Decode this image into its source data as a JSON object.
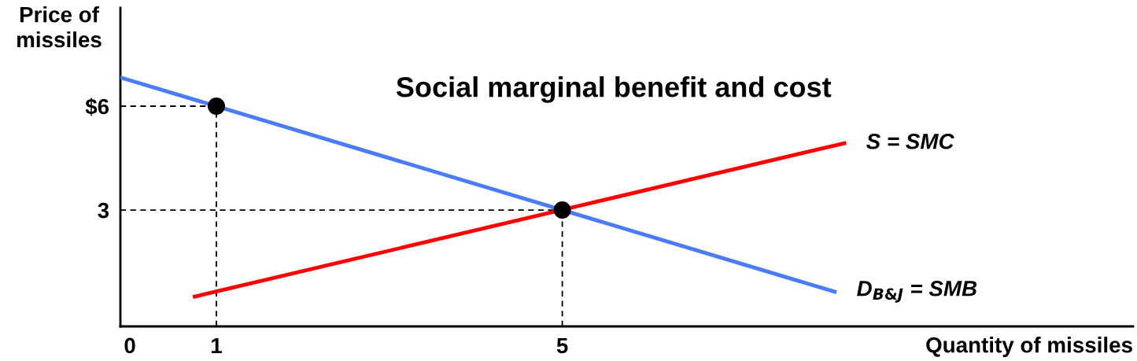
{
  "chart_data": {
    "type": "line",
    "title": "Social marginal benefit and cost",
    "xlabel": "Quantity of missiles",
    "ylabel": "Price of\nmissiles",
    "xlim": [
      -0.11,
      11.6
    ],
    "ylim": [
      -0.36,
      8.84
    ],
    "xticks": [
      0,
      1,
      5
    ],
    "yticks": [
      {
        "value": 6,
        "label": "$6"
      },
      3
    ],
    "grid": false,
    "legend": false,
    "marker": "none",
    "line_style": "solid",
    "series": [
      {
        "name": "D$_{B&J}$ = SMB",
        "color": "#4a7cf7",
        "x": [
          -0.11,
          8.15
        ],
        "values": [
          6.83,
          0.64
        ]
      },
      {
        "name": "S = SMC",
        "color": "#ff0000",
        "x": [
          0.75,
          8.26
        ],
        "values": [
          0.5,
          4.93
        ]
      },
      {
        "type": "line",
        "color": "#000000",
        "line_style": "dashed",
        "x": [
          -0.11,
          1
        ],
        "values": [
          6,
          6
        ]
      },
      {
        "type": "line",
        "color": "#000000",
        "line_style": "dashed",
        "x": [
          1,
          1
        ],
        "values": [
          -0.36,
          6
        ]
      },
      {
        "type": "line",
        "color": "#000000",
        "line_style": "dashed",
        "x": [
          -0.11,
          5
        ],
        "values": [
          3,
          3
        ]
      },
      {
        "type": "line",
        "color": "#000000",
        "line_style": "dashed",
        "x": [
          5,
          5
        ],
        "values": [
          -0.36,
          3
        ]
      },
      {
        "type": "scatter",
        "color": "#000000",
        "marker": "circle",
        "x": [
          1,
          5
        ],
        "values": [
          6,
          3
        ]
      }
    ]
  }
}
